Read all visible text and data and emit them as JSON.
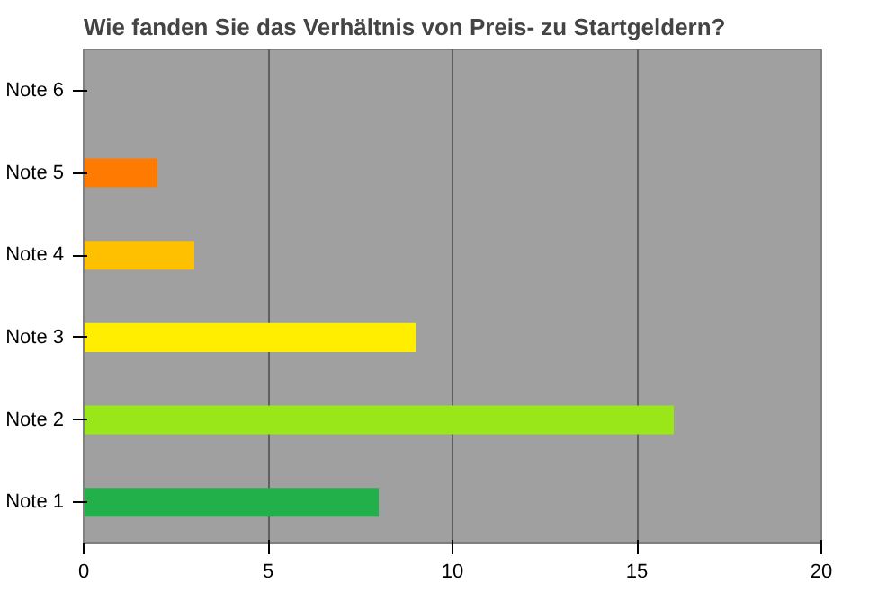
{
  "chart_data": {
    "type": "bar",
    "orientation": "horizontal",
    "title": "Wie fanden Sie das Verhältnis von Preis- zu Startgeldern?",
    "categories": [
      "Note 6",
      "Note 5",
      "Note 4",
      "Note 3",
      "Note 2",
      "Note 1"
    ],
    "values": [
      0,
      2,
      3,
      9,
      16,
      8
    ],
    "colors": [
      "#ff6600",
      "#ff7a00",
      "#ffc000",
      "#ffee00",
      "#99e619",
      "#22b04b"
    ],
    "xlim": [
      0,
      20
    ],
    "xticks": [
      0,
      5,
      10,
      15,
      20
    ],
    "grid": "x"
  }
}
